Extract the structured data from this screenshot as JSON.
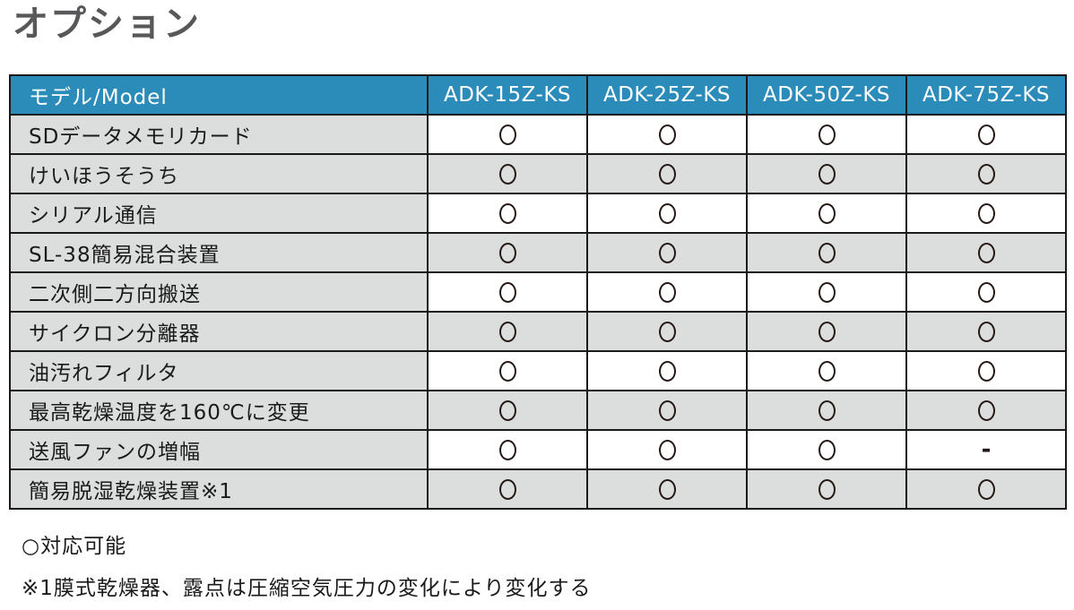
{
  "title": "オプション",
  "table": {
    "header": [
      "モデル/Model",
      "ADK-15Z-KS",
      "ADK-25Z-KS",
      "ADK-50Z-KS",
      "ADK-75Z-KS"
    ],
    "rows": [
      {
        "label": "SDデータメモリカード",
        "values": [
          "circle",
          "circle",
          "circle",
          "circle"
        ]
      },
      {
        "label": "けいほうそうち",
        "values": [
          "circle",
          "circle",
          "circle",
          "circle"
        ]
      },
      {
        "label": "シリアル通信",
        "values": [
          "circle",
          "circle",
          "circle",
          "circle"
        ]
      },
      {
        "label": "SL-38簡易混合装置",
        "values": [
          "circle",
          "circle",
          "circle",
          "circle"
        ]
      },
      {
        "label": "二次側二方向搬送",
        "values": [
          "circle",
          "circle",
          "circle",
          "circle"
        ]
      },
      {
        "label": "サイクロン分離器",
        "values": [
          "circle",
          "circle",
          "circle",
          "circle"
        ]
      },
      {
        "label": "油汚れフィルタ",
        "values": [
          "circle",
          "circle",
          "circle",
          "circle"
        ]
      },
      {
        "label": "最高乾燥温度を160℃に変更",
        "values": [
          "circle",
          "circle",
          "circle",
          "circle"
        ]
      },
      {
        "label": "送風ファンの増幅",
        "values": [
          "circle",
          "circle",
          "circle",
          "dash"
        ]
      },
      {
        "label": "簡易脱湿乾燥装置※1",
        "values": [
          "circle",
          "circle",
          "circle",
          "circle"
        ]
      }
    ]
  },
  "legend": {
    "available": "○対応可能",
    "note1": "※1膜式乾燥器、露点は圧縮空気圧力の変化により変化する"
  },
  "symbols": {
    "circle": "○",
    "dash": "-"
  },
  "colors": {
    "header_bg": "#2b8cba",
    "header_text": "#ffffff",
    "row_gray": "#dcdddd",
    "border": "#1a1a1a",
    "title_text": "#58585a",
    "mark": "#231815"
  }
}
